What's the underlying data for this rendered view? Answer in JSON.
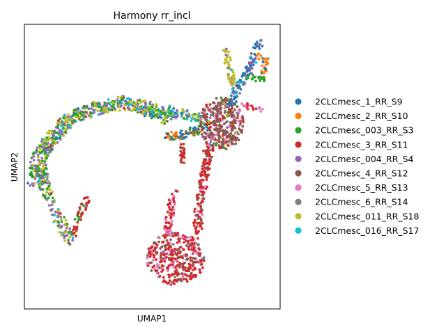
{
  "chart_data": {
    "type": "scatter",
    "title": "Harmony rr_incl",
    "xlabel": "UMAP1",
    "ylabel": "UMAP2",
    "grid": false,
    "legend_placement": "right, outside plot",
    "series": [
      {
        "name": "2CLCmesc_1_RR_S9",
        "color": "#1f77b4"
      },
      {
        "name": "2CLCmesc_2_RR_S10",
        "color": "#ff7f0e"
      },
      {
        "name": "2CLCmesc_003_RR_S3",
        "color": "#2ca02c"
      },
      {
        "name": "2CLCmesc_3_RR_S11",
        "color": "#d62728"
      },
      {
        "name": "2CLCmesc_004_RR_S4",
        "color": "#9467bd"
      },
      {
        "name": "2CLCmesc_4_RR_S12",
        "color": "#8c564b"
      },
      {
        "name": "2CLCmesc_5_RR_S13",
        "color": "#e377c2"
      },
      {
        "name": "2CLCmesc_6_RR_S14",
        "color": "#7f7f7f"
      },
      {
        "name": "2CLCmesc_011_RR_S18",
        "color": "#bcbd22"
      },
      {
        "name": "2CLCmesc_016_RR_S17",
        "color": "#17becf"
      }
    ]
  }
}
